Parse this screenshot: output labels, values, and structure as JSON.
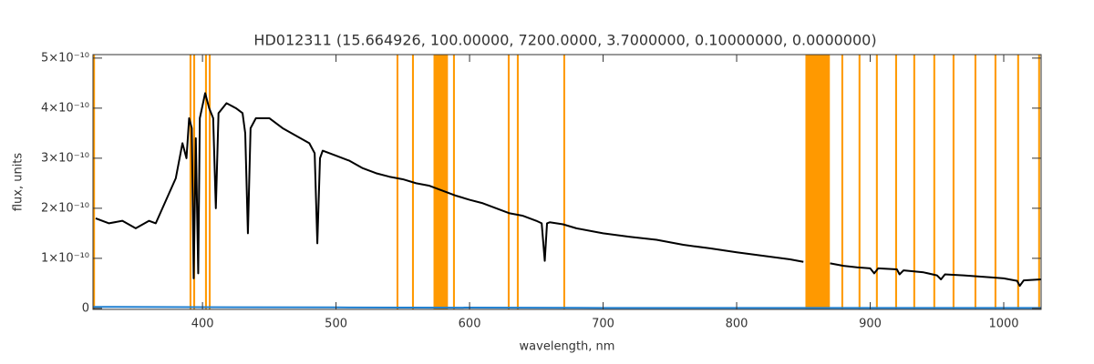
{
  "chart_data": {
    "type": "line",
    "title": "HD012311   (15.664926, 100.00000, 7200.0000, 3.7000000, 0.10000000, 0.0000000)",
    "x_label": "wavelength, nm",
    "y_label": "flux, units",
    "xlim": [
      318,
      1028
    ],
    "ylim": [
      -2e-12,
      5.07e-10
    ],
    "xticks": [
      400,
      500,
      600,
      700,
      800,
      900,
      1000
    ],
    "yticks": [
      0,
      {
        "value": 1e-10,
        "label": "1×10⁻¹⁰"
      },
      {
        "value": 2e-10,
        "label": "2×10⁻¹⁰"
      },
      {
        "value": 3e-10,
        "label": "3×10⁻¹⁰"
      },
      {
        "value": 4e-10,
        "label": "4×10⁻¹⁰"
      },
      {
        "value": 5e-10,
        "label": "5×10⁻¹⁰"
      }
    ],
    "band_color": "#ff9900",
    "bands": [
      [
        318,
        319.5
      ],
      [
        390.3,
        391.7
      ],
      [
        393.1,
        394.5
      ],
      [
        401.9,
        403.3
      ],
      [
        404.7,
        406.1
      ],
      [
        545.3,
        546.7
      ],
      [
        556.9,
        558.3
      ],
      [
        573,
        583.8
      ],
      [
        587.6,
        589
      ],
      [
        628.6,
        630
      ],
      [
        635.4,
        636.8
      ],
      [
        670.2,
        671.6
      ],
      [
        851.5,
        869.8
      ],
      [
        878.4,
        879.8
      ],
      [
        891.3,
        892.7
      ],
      [
        904.3,
        905.7
      ],
      [
        918.7,
        920.1
      ],
      [
        932.3,
        933.7
      ],
      [
        947.3,
        948.7
      ],
      [
        961.7,
        963.1
      ],
      [
        978.1,
        979.5
      ],
      [
        993.1,
        994.5
      ],
      [
        1010.1,
        1011.5
      ],
      [
        1025.8,
        1027.2
      ]
    ],
    "series": [
      {
        "color": "#000000",
        "x": [
          320,
          330,
          340,
          350,
          360,
          365,
          370,
          375,
          380,
          385,
          388,
          390,
          392,
          393.4,
          395,
          396.8,
          398,
          402,
          405,
          408,
          410,
          412,
          418,
          425,
          430,
          432,
          434,
          436,
          440,
          450,
          460,
          470,
          480,
          484,
          486,
          488,
          490,
          500,
          510,
          520,
          530,
          540,
          550,
          560,
          570,
          575,
          590,
          600,
          610,
          620,
          630,
          640,
          650,
          654,
          656.3,
          658,
          660,
          670,
          680,
          700,
          720,
          740,
          760,
          780,
          800,
          820,
          840,
          850,
          860,
          870,
          880,
          890,
          900,
          903,
          906,
          920,
          922,
          925,
          940,
          950,
          953,
          956,
          970,
          990,
          1000,
          1010,
          1012,
          1015,
          1028
        ],
        "values": [
          1.8e-10,
          1.7e-10,
          1.75e-10,
          1.6e-10,
          1.75e-10,
          1.7e-10,
          2e-10,
          2.3e-10,
          2.6e-10,
          3.3e-10,
          3e-10,
          3.8e-10,
          3.6e-10,
          6e-11,
          3.4e-10,
          7e-11,
          3.8e-10,
          4.3e-10,
          4e-10,
          3.8e-10,
          2e-10,
          3.9e-10,
          4.1e-10,
          4e-10,
          3.9e-10,
          3.5e-10,
          1.5e-10,
          3.6e-10,
          3.8e-10,
          3.8e-10,
          3.6e-10,
          3.45e-10,
          3.3e-10,
          3.1e-10,
          1.3e-10,
          3e-10,
          3.15e-10,
          3.05e-10,
          2.95e-10,
          2.8e-10,
          2.7e-10,
          2.63e-10,
          2.58e-10,
          2.5e-10,
          2.45e-10,
          2.4e-10,
          2.25e-10,
          2.17e-10,
          2.1e-10,
          2e-10,
          1.9e-10,
          1.85e-10,
          1.75e-10,
          1.7e-10,
          9.5e-11,
          1.7e-10,
          1.72e-10,
          1.68e-10,
          1.6e-10,
          1.5e-10,
          1.43e-10,
          1.37e-10,
          1.27e-10,
          1.2e-10,
          1.12e-10,
          1.05e-10,
          9.8e-11,
          9.3e-11,
          null,
          9e-11,
          8.5e-11,
          8.2e-11,
          8e-11,
          7e-11,
          8e-11,
          7.8e-11,
          6.8e-11,
          7.6e-11,
          7.2e-11,
          6.6e-11,
          5.8e-11,
          6.8e-11,
          6.6e-11,
          6.2e-11,
          6e-11,
          5.5e-11,
          4.5e-11,
          5.6e-11,
          5.8e-11
        ]
      },
      {
        "color": "#1f7fd0",
        "x": [
          318,
          500,
          700,
          900,
          1028
        ],
        "values": [
          3e-12,
          2e-12,
          1e-12,
          1e-12,
          1e-12
        ]
      }
    ]
  }
}
